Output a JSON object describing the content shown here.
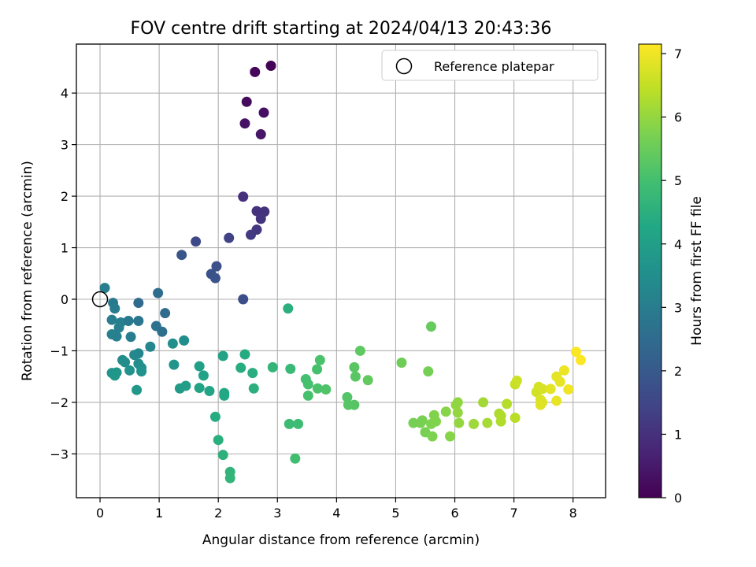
{
  "chart_data": {
    "type": "scatter",
    "title": "FOV centre drift starting at 2024/04/13 20:43:36",
    "xlabel": "Angular distance from reference (arcmin)",
    "ylabel": "Rotation from reference (arcmin)",
    "xlim": [
      -0.4,
      8.55
    ],
    "ylim": [
      -3.85,
      4.95
    ],
    "x_ticks": [
      "0",
      "1",
      "2",
      "3",
      "4",
      "5",
      "6",
      "7",
      "8"
    ],
    "y_ticks": [
      "−3",
      "−2",
      "−1",
      "0",
      "1",
      "2",
      "3",
      "4"
    ],
    "grid": true,
    "legend": {
      "placement": "top-right",
      "label": "Reference platepar"
    },
    "colorbar": {
      "label": "Hours from first FF file",
      "colormap": "viridis",
      "range": [
        0,
        7.15
      ],
      "ticks": [
        "0",
        "1",
        "2",
        "3",
        "4",
        "5",
        "6",
        "7"
      ]
    },
    "reference_point": {
      "x": 0,
      "y": 0
    },
    "points": [
      {
        "x": 2.89,
        "y": 4.53,
        "c": 0.05
      },
      {
        "x": 2.62,
        "y": 4.41,
        "c": 0.12
      },
      {
        "x": 2.48,
        "y": 3.83,
        "c": 0.2
      },
      {
        "x": 2.77,
        "y": 3.62,
        "c": 0.28
      },
      {
        "x": 2.45,
        "y": 3.41,
        "c": 0.35
      },
      {
        "x": 2.72,
        "y": 3.2,
        "c": 0.42
      },
      {
        "x": 2.42,
        "y": 1.99,
        "c": 0.95
      },
      {
        "x": 2.65,
        "y": 1.71,
        "c": 1.0
      },
      {
        "x": 2.78,
        "y": 1.7,
        "c": 1.03
      },
      {
        "x": 2.72,
        "y": 1.56,
        "c": 1.08
      },
      {
        "x": 2.65,
        "y": 1.35,
        "c": 1.12
      },
      {
        "x": 2.55,
        "y": 1.25,
        "c": 1.2
      },
      {
        "x": 2.18,
        "y": 1.19,
        "c": 1.4
      },
      {
        "x": 1.62,
        "y": 1.12,
        "c": 1.6
      },
      {
        "x": 1.38,
        "y": 0.86,
        "c": 1.9
      },
      {
        "x": 1.97,
        "y": 0.64,
        "c": 1.75
      },
      {
        "x": 1.88,
        "y": 0.49,
        "c": 1.78
      },
      {
        "x": 1.95,
        "y": 0.41,
        "c": 1.82
      },
      {
        "x": 2.42,
        "y": 0.0,
        "c": 1.7
      },
      {
        "x": 0.08,
        "y": 0.22,
        "c": 3.0
      },
      {
        "x": 0.98,
        "y": 0.12,
        "c": 2.55
      },
      {
        "x": 0.22,
        "y": -0.07,
        "c": 2.9
      },
      {
        "x": 0.65,
        "y": -0.07,
        "c": 2.5
      },
      {
        "x": 0.25,
        "y": -0.18,
        "c": 2.95
      },
      {
        "x": 1.1,
        "y": -0.27,
        "c": 2.45
      },
      {
        "x": 0.2,
        "y": -0.4,
        "c": 3.0
      },
      {
        "x": 0.35,
        "y": -0.45,
        "c": 3.1
      },
      {
        "x": 0.48,
        "y": -0.42,
        "c": 2.9
      },
      {
        "x": 0.65,
        "y": -0.42,
        "c": 2.8
      },
      {
        "x": 0.32,
        "y": -0.55,
        "c": 3.1
      },
      {
        "x": 0.95,
        "y": -0.52,
        "c": 2.7
      },
      {
        "x": 1.05,
        "y": -0.63,
        "c": 2.6
      },
      {
        "x": 0.2,
        "y": -0.68,
        "c": 3.1
      },
      {
        "x": 0.28,
        "y": -0.72,
        "c": 3.05
      },
      {
        "x": 0.52,
        "y": -0.73,
        "c": 3.0
      },
      {
        "x": 1.42,
        "y": -0.8,
        "c": 3.5
      },
      {
        "x": 1.23,
        "y": -0.86,
        "c": 3.55
      },
      {
        "x": 0.85,
        "y": -0.92,
        "c": 3.3
      },
      {
        "x": 0.58,
        "y": -1.08,
        "c": 3.35
      },
      {
        "x": 0.65,
        "y": -1.05,
        "c": 3.3
      },
      {
        "x": 0.38,
        "y": -1.18,
        "c": 3.4
      },
      {
        "x": 0.42,
        "y": -1.22,
        "c": 3.45
      },
      {
        "x": 0.65,
        "y": -1.25,
        "c": 3.5
      },
      {
        "x": 0.7,
        "y": -1.33,
        "c": 3.55
      },
      {
        "x": 0.5,
        "y": -1.38,
        "c": 3.6
      },
      {
        "x": 0.7,
        "y": -1.4,
        "c": 3.6
      },
      {
        "x": 0.2,
        "y": -1.43,
        "c": 3.7
      },
      {
        "x": 0.28,
        "y": -1.42,
        "c": 3.72
      },
      {
        "x": 0.25,
        "y": -1.48,
        "c": 3.75
      },
      {
        "x": 1.25,
        "y": -1.27,
        "c": 3.7
      },
      {
        "x": 0.62,
        "y": -1.76,
        "c": 3.8
      },
      {
        "x": 1.35,
        "y": -1.73,
        "c": 3.9
      },
      {
        "x": 1.45,
        "y": -1.68,
        "c": 3.95
      },
      {
        "x": 1.68,
        "y": -1.3,
        "c": 4.05
      },
      {
        "x": 1.75,
        "y": -1.48,
        "c": 4.1
      },
      {
        "x": 1.68,
        "y": -1.72,
        "c": 4.15
      },
      {
        "x": 1.85,
        "y": -1.78,
        "c": 4.2
      },
      {
        "x": 2.08,
        "y": -1.1,
        "c": 4.15
      },
      {
        "x": 2.1,
        "y": -1.82,
        "c": 4.25
      },
      {
        "x": 2.1,
        "y": -1.87,
        "c": 4.28
      },
      {
        "x": 1.95,
        "y": -2.28,
        "c": 4.4
      },
      {
        "x": 2.0,
        "y": -2.73,
        "c": 4.5
      },
      {
        "x": 2.08,
        "y": -3.02,
        "c": 4.55
      },
      {
        "x": 2.2,
        "y": -3.35,
        "c": 4.62
      },
      {
        "x": 2.2,
        "y": -3.47,
        "c": 4.65
      },
      {
        "x": 2.45,
        "y": -1.07,
        "c": 4.35
      },
      {
        "x": 2.38,
        "y": -1.33,
        "c": 4.4
      },
      {
        "x": 2.58,
        "y": -1.43,
        "c": 4.45
      },
      {
        "x": 2.6,
        "y": -1.73,
        "c": 4.5
      },
      {
        "x": 2.92,
        "y": -1.32,
        "c": 4.7
      },
      {
        "x": 3.18,
        "y": -0.18,
        "c": 4.5
      },
      {
        "x": 3.22,
        "y": -1.35,
        "c": 4.8
      },
      {
        "x": 3.2,
        "y": -2.42,
        "c": 4.85
      },
      {
        "x": 3.35,
        "y": -2.42,
        "c": 4.9
      },
      {
        "x": 3.3,
        "y": -3.09,
        "c": 4.95
      },
      {
        "x": 3.48,
        "y": -1.55,
        "c": 5.0
      },
      {
        "x": 3.52,
        "y": -1.65,
        "c": 5.05
      },
      {
        "x": 3.52,
        "y": -1.87,
        "c": 5.05
      },
      {
        "x": 3.67,
        "y": -1.36,
        "c": 5.05
      },
      {
        "x": 3.72,
        "y": -1.18,
        "c": 5.1
      },
      {
        "x": 3.68,
        "y": -1.73,
        "c": 5.1
      },
      {
        "x": 3.82,
        "y": -1.75,
        "c": 5.15
      },
      {
        "x": 4.18,
        "y": -1.9,
        "c": 5.2
      },
      {
        "x": 4.2,
        "y": -2.05,
        "c": 5.25
      },
      {
        "x": 4.3,
        "y": -2.05,
        "c": 5.25
      },
      {
        "x": 4.3,
        "y": -1.32,
        "c": 5.3
      },
      {
        "x": 4.32,
        "y": -1.5,
        "c": 5.3
      },
      {
        "x": 4.4,
        "y": -1.0,
        "c": 5.35
      },
      {
        "x": 4.53,
        "y": -1.57,
        "c": 5.4
      },
      {
        "x": 5.1,
        "y": -1.23,
        "c": 5.55
      },
      {
        "x": 5.3,
        "y": -2.4,
        "c": 5.65
      },
      {
        "x": 5.42,
        "y": -2.4,
        "c": 5.68
      },
      {
        "x": 5.45,
        "y": -2.35,
        "c": 5.7
      },
      {
        "x": 5.5,
        "y": -2.58,
        "c": 5.7
      },
      {
        "x": 5.55,
        "y": -1.4,
        "c": 5.65
      },
      {
        "x": 5.6,
        "y": -0.53,
        "c": 5.45
      },
      {
        "x": 5.6,
        "y": -2.42,
        "c": 5.75
      },
      {
        "x": 5.62,
        "y": -2.66,
        "c": 5.75
      },
      {
        "x": 5.65,
        "y": -2.25,
        "c": 5.78
      },
      {
        "x": 5.68,
        "y": -2.37,
        "c": 5.8
      },
      {
        "x": 5.85,
        "y": -2.18,
        "c": 5.85
      },
      {
        "x": 5.92,
        "y": -2.66,
        "c": 5.85
      },
      {
        "x": 6.02,
        "y": -2.05,
        "c": 5.95
      },
      {
        "x": 6.05,
        "y": -2.0,
        "c": 5.95
      },
      {
        "x": 6.05,
        "y": -2.2,
        "c": 6.0
      },
      {
        "x": 6.07,
        "y": -2.4,
        "c": 6.0
      },
      {
        "x": 6.32,
        "y": -2.42,
        "c": 6.1
      },
      {
        "x": 6.48,
        "y": -2.0,
        "c": 6.15
      },
      {
        "x": 6.55,
        "y": -2.4,
        "c": 6.2
      },
      {
        "x": 6.75,
        "y": -2.22,
        "c": 6.25
      },
      {
        "x": 6.78,
        "y": -2.26,
        "c": 6.3
      },
      {
        "x": 6.78,
        "y": -2.37,
        "c": 6.3
      },
      {
        "x": 6.88,
        "y": -2.03,
        "c": 6.35
      },
      {
        "x": 7.02,
        "y": -1.65,
        "c": 6.55
      },
      {
        "x": 7.05,
        "y": -1.58,
        "c": 6.6
      },
      {
        "x": 7.02,
        "y": -2.3,
        "c": 6.4
      },
      {
        "x": 7.38,
        "y": -1.8,
        "c": 6.65
      },
      {
        "x": 7.42,
        "y": -1.7,
        "c": 6.7
      },
      {
        "x": 7.48,
        "y": -1.74,
        "c": 6.7
      },
      {
        "x": 7.45,
        "y": -1.95,
        "c": 6.75
      },
      {
        "x": 7.48,
        "y": -2.0,
        "c": 6.78
      },
      {
        "x": 7.45,
        "y": -2.05,
        "c": 6.8
      },
      {
        "x": 7.62,
        "y": -1.74,
        "c": 6.85
      },
      {
        "x": 7.72,
        "y": -1.5,
        "c": 6.85
      },
      {
        "x": 7.72,
        "y": -1.97,
        "c": 6.9
      },
      {
        "x": 7.78,
        "y": -1.6,
        "c": 6.9
      },
      {
        "x": 7.85,
        "y": -1.38,
        "c": 6.95
      },
      {
        "x": 7.92,
        "y": -1.75,
        "c": 7.0
      },
      {
        "x": 8.05,
        "y": -1.02,
        "c": 7.1
      },
      {
        "x": 8.13,
        "y": -1.18,
        "c": 7.15
      }
    ]
  }
}
